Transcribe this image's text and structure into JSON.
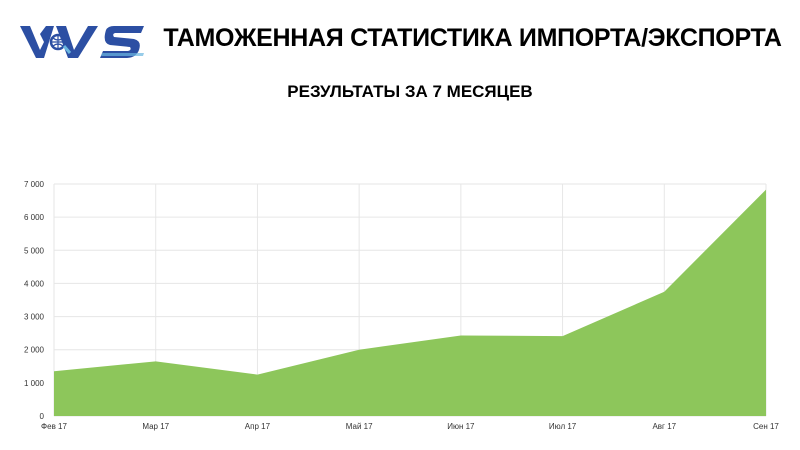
{
  "header": {
    "title": "ТАМОЖЕННАЯ СТАТИСТИКА ИМПОРТА/ЭКСПОРТА",
    "subtitle": "РЕЗУЛЬТАТЫ ЗА 7 МЕСЯЦЕВ",
    "logo_text": "VVS",
    "brand_color": "#2c4fa3"
  },
  "chart_data": {
    "type": "area",
    "categories": [
      "Фев 17",
      "Мар 17",
      "Апр 17",
      "Май 17",
      "Июн 17",
      "Июл 17",
      "Авг 17",
      "Сен 17"
    ],
    "series": [
      {
        "values": [
          1350,
          1650,
          1250,
          2000,
          2430,
          2410,
          3750,
          6830
        ],
        "color": "#8dc65b"
      }
    ],
    "y_ticks": [
      "0",
      "1 000",
      "2 000",
      "3 000",
      "4 000",
      "5 000",
      "6 000",
      "7 000"
    ],
    "ylim": [
      0,
      7000
    ],
    "grid": true,
    "legend": "none"
  }
}
